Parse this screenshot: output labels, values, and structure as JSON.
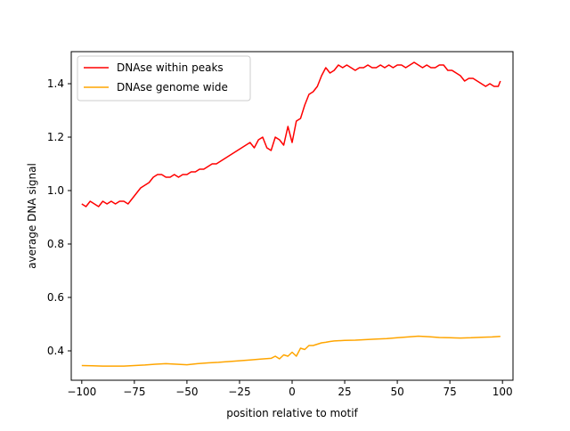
{
  "chart_data": {
    "type": "line",
    "xlabel": "position relative to motif",
    "ylabel": "average DNA signal",
    "xlim": [
      -105,
      105
    ],
    "ylim": [
      0.29,
      1.52
    ],
    "xticks": [
      -100,
      -75,
      -50,
      -25,
      0,
      25,
      50,
      75,
      100
    ],
    "xtick_labels": [
      "−100",
      "−75",
      "−50",
      "−25",
      "0",
      "25",
      "50",
      "75",
      "100"
    ],
    "yticks": [
      0.4,
      0.6,
      0.8,
      1.0,
      1.2,
      1.4
    ],
    "ytick_labels": [
      "0.4",
      "0.6",
      "0.8",
      "1.0",
      "1.2",
      "1.4"
    ],
    "grid": false,
    "legend_position": "upper left",
    "series": [
      {
        "name": "DNAse within peaks",
        "color": "#ff0000",
        "x": [
          -100,
          -98,
          -96,
          -94,
          -92,
          -90,
          -88,
          -86,
          -84,
          -82,
          -80,
          -78,
          -76,
          -74,
          -72,
          -70,
          -68,
          -66,
          -64,
          -62,
          -60,
          -58,
          -56,
          -54,
          -52,
          -50,
          -48,
          -46,
          -44,
          -42,
          -40,
          -38,
          -36,
          -34,
          -32,
          -30,
          -28,
          -26,
          -24,
          -22,
          -20,
          -18,
          -16,
          -14,
          -12,
          -10,
          -8,
          -6,
          -4,
          -2,
          0,
          2,
          4,
          6,
          8,
          10,
          12,
          14,
          16,
          18,
          20,
          22,
          24,
          26,
          28,
          30,
          32,
          34,
          36,
          38,
          40,
          42,
          44,
          46,
          48,
          50,
          52,
          54,
          56,
          58,
          60,
          62,
          64,
          66,
          68,
          70,
          72,
          74,
          76,
          78,
          80,
          82,
          84,
          86,
          88,
          90,
          92,
          94,
          96,
          98,
          99
        ],
        "values": [
          0.95,
          0.94,
          0.96,
          0.95,
          0.94,
          0.96,
          0.95,
          0.96,
          0.95,
          0.96,
          0.96,
          0.95,
          0.97,
          0.99,
          1.01,
          1.02,
          1.03,
          1.05,
          1.06,
          1.06,
          1.05,
          1.05,
          1.06,
          1.05,
          1.06,
          1.06,
          1.07,
          1.07,
          1.08,
          1.08,
          1.09,
          1.1,
          1.1,
          1.11,
          1.12,
          1.13,
          1.14,
          1.15,
          1.16,
          1.17,
          1.18,
          1.16,
          1.19,
          1.2,
          1.16,
          1.15,
          1.2,
          1.19,
          1.17,
          1.24,
          1.18,
          1.26,
          1.27,
          1.32,
          1.36,
          1.37,
          1.39,
          1.43,
          1.46,
          1.44,
          1.45,
          1.47,
          1.46,
          1.47,
          1.46,
          1.45,
          1.46,
          1.46,
          1.47,
          1.46,
          1.46,
          1.47,
          1.46,
          1.47,
          1.46,
          1.47,
          1.47,
          1.46,
          1.47,
          1.48,
          1.47,
          1.46,
          1.47,
          1.46,
          1.46,
          1.47,
          1.47,
          1.45,
          1.45,
          1.44,
          1.43,
          1.41,
          1.42,
          1.42,
          1.41,
          1.4,
          1.39,
          1.4,
          1.39,
          1.39,
          1.41
        ]
      },
      {
        "name": "DNAse genome wide",
        "color": "#ffa500",
        "x": [
          -100,
          -95,
          -90,
          -85,
          -80,
          -75,
          -70,
          -65,
          -60,
          -55,
          -50,
          -45,
          -40,
          -35,
          -30,
          -25,
          -20,
          -15,
          -10,
          -8,
          -6,
          -4,
          -2,
          0,
          2,
          4,
          6,
          8,
          10,
          12,
          14,
          16,
          18,
          20,
          25,
          30,
          35,
          40,
          45,
          50,
          55,
          60,
          65,
          70,
          75,
          80,
          85,
          90,
          95,
          99
        ],
        "values": [
          0.345,
          0.344,
          0.343,
          0.343,
          0.343,
          0.345,
          0.347,
          0.35,
          0.352,
          0.35,
          0.348,
          0.352,
          0.355,
          0.357,
          0.36,
          0.363,
          0.366,
          0.369,
          0.372,
          0.38,
          0.37,
          0.385,
          0.38,
          0.395,
          0.38,
          0.41,
          0.405,
          0.42,
          0.42,
          0.425,
          0.43,
          0.432,
          0.435,
          0.437,
          0.439,
          0.44,
          0.442,
          0.444,
          0.446,
          0.449,
          0.452,
          0.455,
          0.453,
          0.45,
          0.449,
          0.448,
          0.449,
          0.451,
          0.452,
          0.454
        ]
      }
    ]
  }
}
